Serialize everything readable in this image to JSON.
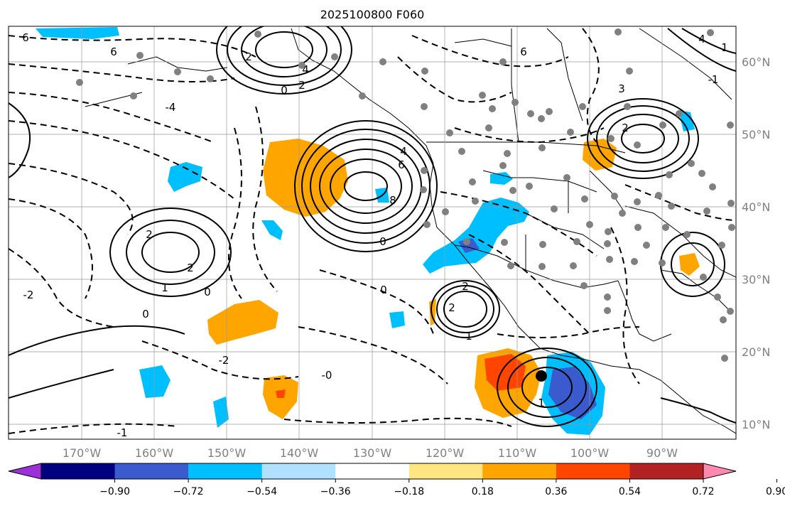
{
  "title": "2025100800 F060",
  "lat_labels": [
    "60°N",
    "50°N",
    "40°N",
    "30°N",
    "20°N",
    "10°N"
  ],
  "lon_labels": [
    "170°W",
    "160°W",
    "150°W",
    "140°W",
    "130°W",
    "120°W",
    "110°W",
    "100°W",
    "90°W"
  ],
  "colorbar": {
    "ticks": [
      "−0.90",
      "−0.72",
      "−0.54",
      "−0.36",
      "−0.18",
      "0.18",
      "0.36",
      "0.54",
      "0.72",
      "0.90"
    ],
    "colors": [
      "#9b30d9",
      "#000080",
      "#3a5bcd",
      "#00bfff",
      "#b0e2ff",
      "#ffffff",
      "#ffe680",
      "#ffa500",
      "#ff4500",
      "#b22222",
      "#ff88b0"
    ]
  },
  "shading_colors": {
    "neg_1": "#00bfff",
    "neg_2": "#3a5bcd",
    "neg_3": "#9b30d9",
    "pos_1": "#ffa500",
    "pos_2": "#ff4500"
  },
  "contour_labels": [
    {
      "t": "6"
    },
    {
      "t": "6"
    },
    {
      "t": "4"
    },
    {
      "t": "2"
    },
    {
      "t": "0"
    },
    {
      "t": "-4"
    },
    {
      "t": "2"
    },
    {
      "t": "4"
    },
    {
      "t": "6"
    },
    {
      "t": "8"
    },
    {
      "t": "0"
    },
    {
      "t": "2"
    },
    {
      "t": "1"
    },
    {
      "t": "2"
    },
    {
      "t": "0"
    },
    {
      "t": "-2"
    },
    {
      "t": "-0"
    },
    {
      "t": "-1"
    },
    {
      "t": "-2"
    },
    {
      "t": "2"
    },
    {
      "t": "1"
    },
    {
      "t": "0"
    },
    {
      "t": "6"
    },
    {
      "t": "3"
    },
    {
      "t": "2"
    },
    {
      "t": "4"
    },
    {
      "t": "1"
    },
    {
      "t": "-1"
    },
    {
      "t": "2"
    },
    {
      "t": "0"
    },
    {
      "t": "1"
    }
  ]
}
